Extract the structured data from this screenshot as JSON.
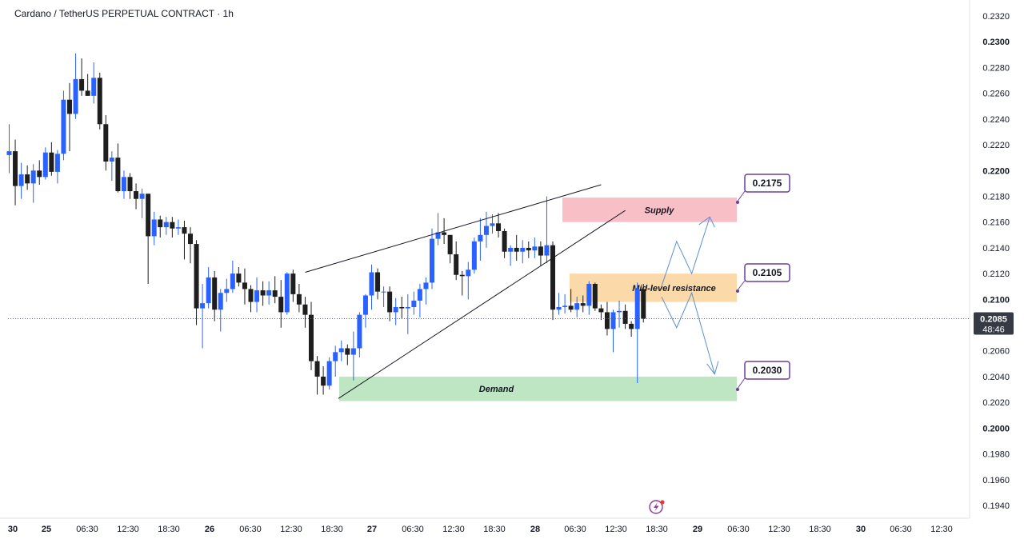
{
  "title": "Cardano / TetherUS PERPETUAL CONTRACT · 1h",
  "colors": {
    "bull": "#2962ff",
    "bear": "#1e1e1e",
    "supply": "#f8bfc6",
    "resistance": "#fcd9a8",
    "demand": "#bfe6c2",
    "callout_border": "#6a3ea1",
    "projection": "#5b8fd6",
    "price_badge": "#363a45"
  },
  "current_price": {
    "value": 0.2085,
    "label": "0.2085",
    "countdown": "48:46"
  },
  "chart_data": {
    "type": "candlestick",
    "title": "Cardano / TetherUS PERPETUAL CONTRACT · 1h",
    "xlabel": "",
    "ylabel": "",
    "ylim": [
      0.1935,
      0.2328
    ],
    "grid": false,
    "y_ticks": [
      "0.2320",
      "0.2300",
      "0.2280",
      "0.2260",
      "0.2240",
      "0.2220",
      "0.2200",
      "0.2180",
      "0.2160",
      "0.2140",
      "0.2120",
      "0.2100",
      "0.2060",
      "0.2040",
      "0.2020",
      "0.2000",
      "0.1980",
      "0.1960",
      "0.1940"
    ],
    "y_ticks_major": [
      "0.2300",
      "0.2200",
      "0.2100",
      "0.2000"
    ],
    "x_ticks": [
      "30",
      "25",
      "06:30",
      "12:30",
      "18:30",
      "26",
      "06:30",
      "12:30",
      "18:30",
      "27",
      "06:30",
      "12:30",
      "18:30",
      "28",
      "06:30",
      "12:30",
      "18:30",
      "29",
      "06:30",
      "12:30",
      "18:30",
      "30",
      "06:30",
      "12:30"
    ],
    "x_ticks_day": [
      "25",
      "26",
      "27",
      "28",
      "29",
      "30"
    ],
    "candles": [
      {
        "o": 0.2212,
        "h": 0.2236,
        "l": 0.2198,
        "c": 0.2215
      },
      {
        "o": 0.2215,
        "h": 0.2224,
        "l": 0.2173,
        "c": 0.2188
      },
      {
        "o": 0.2188,
        "h": 0.2206,
        "l": 0.2178,
        "c": 0.2197
      },
      {
        "o": 0.2197,
        "h": 0.2204,
        "l": 0.2185,
        "c": 0.219
      },
      {
        "o": 0.219,
        "h": 0.2205,
        "l": 0.2175,
        "c": 0.22
      },
      {
        "o": 0.22,
        "h": 0.2208,
        "l": 0.2189,
        "c": 0.2195
      },
      {
        "o": 0.2195,
        "h": 0.2218,
        "l": 0.2193,
        "c": 0.2214
      },
      {
        "o": 0.2214,
        "h": 0.2222,
        "l": 0.2196,
        "c": 0.2199
      },
      {
        "o": 0.2199,
        "h": 0.2216,
        "l": 0.219,
        "c": 0.2213
      },
      {
        "o": 0.2213,
        "h": 0.2262,
        "l": 0.2208,
        "c": 0.2255
      },
      {
        "o": 0.2255,
        "h": 0.2268,
        "l": 0.2215,
        "c": 0.2244
      },
      {
        "o": 0.2244,
        "h": 0.2291,
        "l": 0.224,
        "c": 0.2271
      },
      {
        "o": 0.2271,
        "h": 0.2287,
        "l": 0.2258,
        "c": 0.2262
      },
      {
        "o": 0.2262,
        "h": 0.2275,
        "l": 0.2258,
        "c": 0.2258
      },
      {
        "o": 0.2258,
        "h": 0.2284,
        "l": 0.2252,
        "c": 0.2272
      },
      {
        "o": 0.2272,
        "h": 0.2276,
        "l": 0.2232,
        "c": 0.2236
      },
      {
        "o": 0.2236,
        "h": 0.2243,
        "l": 0.22,
        "c": 0.2207
      },
      {
        "o": 0.2207,
        "h": 0.2215,
        "l": 0.2192,
        "c": 0.221
      },
      {
        "o": 0.221,
        "h": 0.2221,
        "l": 0.2183,
        "c": 0.2184
      },
      {
        "o": 0.2184,
        "h": 0.22,
        "l": 0.2178,
        "c": 0.2195
      },
      {
        "o": 0.2195,
        "h": 0.2198,
        "l": 0.2178,
        "c": 0.2184
      },
      {
        "o": 0.2184,
        "h": 0.219,
        "l": 0.217,
        "c": 0.2178
      },
      {
        "o": 0.2178,
        "h": 0.2186,
        "l": 0.2163,
        "c": 0.2182
      },
      {
        "o": 0.2182,
        "h": 0.2182,
        "l": 0.2112,
        "c": 0.2149
      },
      {
        "o": 0.2149,
        "h": 0.2168,
        "l": 0.2142,
        "c": 0.2162
      },
      {
        "o": 0.2162,
        "h": 0.2165,
        "l": 0.2148,
        "c": 0.2156
      },
      {
        "o": 0.2156,
        "h": 0.2164,
        "l": 0.215,
        "c": 0.216
      },
      {
        "o": 0.216,
        "h": 0.2164,
        "l": 0.2148,
        "c": 0.2155
      },
      {
        "o": 0.2155,
        "h": 0.2162,
        "l": 0.215,
        "c": 0.2156
      },
      {
        "o": 0.2156,
        "h": 0.2161,
        "l": 0.2131,
        "c": 0.2151
      },
      {
        "o": 0.2151,
        "h": 0.2156,
        "l": 0.2128,
        "c": 0.2143
      },
      {
        "o": 0.2143,
        "h": 0.2146,
        "l": 0.208,
        "c": 0.2093
      },
      {
        "o": 0.2093,
        "h": 0.2112,
        "l": 0.2062,
        "c": 0.2097
      },
      {
        "o": 0.2097,
        "h": 0.2125,
        "l": 0.2093,
        "c": 0.2117
      },
      {
        "o": 0.2117,
        "h": 0.2122,
        "l": 0.2083,
        "c": 0.2092
      },
      {
        "o": 0.2092,
        "h": 0.2108,
        "l": 0.2075,
        "c": 0.2105
      },
      {
        "o": 0.2105,
        "h": 0.2116,
        "l": 0.2098,
        "c": 0.2108
      },
      {
        "o": 0.2108,
        "h": 0.213,
        "l": 0.2105,
        "c": 0.212
      },
      {
        "o": 0.212,
        "h": 0.2125,
        "l": 0.211,
        "c": 0.2113
      },
      {
        "o": 0.2113,
        "h": 0.2124,
        "l": 0.2096,
        "c": 0.2108
      },
      {
        "o": 0.2108,
        "h": 0.2111,
        "l": 0.209,
        "c": 0.2098
      },
      {
        "o": 0.2098,
        "h": 0.2117,
        "l": 0.209,
        "c": 0.2107
      },
      {
        "o": 0.2107,
        "h": 0.2114,
        "l": 0.2095,
        "c": 0.2103
      },
      {
        "o": 0.2103,
        "h": 0.2114,
        "l": 0.2096,
        "c": 0.2107
      },
      {
        "o": 0.2107,
        "h": 0.2118,
        "l": 0.2097,
        "c": 0.2102
      },
      {
        "o": 0.2102,
        "h": 0.2115,
        "l": 0.2078,
        "c": 0.209
      },
      {
        "o": 0.209,
        "h": 0.2121,
        "l": 0.2088,
        "c": 0.212
      },
      {
        "o": 0.212,
        "h": 0.2123,
        "l": 0.2098,
        "c": 0.2104
      },
      {
        "o": 0.2104,
        "h": 0.2112,
        "l": 0.209,
        "c": 0.2096
      },
      {
        "o": 0.2096,
        "h": 0.2102,
        "l": 0.2078,
        "c": 0.2088
      },
      {
        "o": 0.2088,
        "h": 0.2098,
        "l": 0.2045,
        "c": 0.2052
      },
      {
        "o": 0.2052,
        "h": 0.2056,
        "l": 0.2026,
        "c": 0.204
      },
      {
        "o": 0.204,
        "h": 0.2048,
        "l": 0.2026,
        "c": 0.2033
      },
      {
        "o": 0.2033,
        "h": 0.2055,
        "l": 0.203,
        "c": 0.2052
      },
      {
        "o": 0.2052,
        "h": 0.2064,
        "l": 0.204,
        "c": 0.2059
      },
      {
        "o": 0.2059,
        "h": 0.2068,
        "l": 0.2052,
        "c": 0.2062
      },
      {
        "o": 0.2062,
        "h": 0.2065,
        "l": 0.2049,
        "c": 0.2057
      },
      {
        "o": 0.2057,
        "h": 0.2075,
        "l": 0.2037,
        "c": 0.2062
      },
      {
        "o": 0.2062,
        "h": 0.209,
        "l": 0.2055,
        "c": 0.2088
      },
      {
        "o": 0.2088,
        "h": 0.2104,
        "l": 0.2078,
        "c": 0.2103
      },
      {
        "o": 0.2103,
        "h": 0.2127,
        "l": 0.2092,
        "c": 0.2121
      },
      {
        "o": 0.2121,
        "h": 0.2124,
        "l": 0.21,
        "c": 0.2106
      },
      {
        "o": 0.2106,
        "h": 0.211,
        "l": 0.2094,
        "c": 0.2106
      },
      {
        "o": 0.2106,
        "h": 0.211,
        "l": 0.2083,
        "c": 0.209
      },
      {
        "o": 0.209,
        "h": 0.2101,
        "l": 0.208,
        "c": 0.2094
      },
      {
        "o": 0.2094,
        "h": 0.2102,
        "l": 0.2085,
        "c": 0.2093
      },
      {
        "o": 0.2093,
        "h": 0.2104,
        "l": 0.2073,
        "c": 0.2094
      },
      {
        "o": 0.2094,
        "h": 0.2106,
        "l": 0.2088,
        "c": 0.2099
      },
      {
        "o": 0.2099,
        "h": 0.2112,
        "l": 0.2086,
        "c": 0.2108
      },
      {
        "o": 0.2108,
        "h": 0.2117,
        "l": 0.2096,
        "c": 0.2113
      },
      {
        "o": 0.2113,
        "h": 0.2155,
        "l": 0.2108,
        "c": 0.2147
      },
      {
        "o": 0.2147,
        "h": 0.2167,
        "l": 0.2142,
        "c": 0.2152
      },
      {
        "o": 0.2152,
        "h": 0.2163,
        "l": 0.2143,
        "c": 0.215
      },
      {
        "o": 0.215,
        "h": 0.215,
        "l": 0.2128,
        "c": 0.2135
      },
      {
        "o": 0.2135,
        "h": 0.2145,
        "l": 0.2115,
        "c": 0.2119
      },
      {
        "o": 0.2119,
        "h": 0.2122,
        "l": 0.2103,
        "c": 0.2118
      },
      {
        "o": 0.2118,
        "h": 0.2129,
        "l": 0.21,
        "c": 0.2123
      },
      {
        "o": 0.2123,
        "h": 0.2148,
        "l": 0.212,
        "c": 0.2145
      },
      {
        "o": 0.2145,
        "h": 0.2163,
        "l": 0.213,
        "c": 0.215
      },
      {
        "o": 0.215,
        "h": 0.2168,
        "l": 0.214,
        "c": 0.2157
      },
      {
        "o": 0.2157,
        "h": 0.2166,
        "l": 0.2151,
        "c": 0.2159
      },
      {
        "o": 0.2159,
        "h": 0.2167,
        "l": 0.2148,
        "c": 0.2153
      },
      {
        "o": 0.2153,
        "h": 0.2155,
        "l": 0.2132,
        "c": 0.2137
      },
      {
        "o": 0.2137,
        "h": 0.2142,
        "l": 0.2126,
        "c": 0.214
      },
      {
        "o": 0.214,
        "h": 0.215,
        "l": 0.213,
        "c": 0.2137
      },
      {
        "o": 0.2137,
        "h": 0.2146,
        "l": 0.2128,
        "c": 0.214
      },
      {
        "o": 0.214,
        "h": 0.2145,
        "l": 0.2132,
        "c": 0.2138
      },
      {
        "o": 0.2138,
        "h": 0.2148,
        "l": 0.2132,
        "c": 0.2141
      },
      {
        "o": 0.2141,
        "h": 0.2145,
        "l": 0.2126,
        "c": 0.2134
      },
      {
        "o": 0.2134,
        "h": 0.218,
        "l": 0.2128,
        "c": 0.2142
      },
      {
        "o": 0.2142,
        "h": 0.2145,
        "l": 0.2084,
        "c": 0.2092
      },
      {
        "o": 0.2092,
        "h": 0.2105,
        "l": 0.2088,
        "c": 0.2094
      },
      {
        "o": 0.2094,
        "h": 0.2104,
        "l": 0.2089,
        "c": 0.2095
      },
      {
        "o": 0.2095,
        "h": 0.2108,
        "l": 0.209,
        "c": 0.2092
      },
      {
        "o": 0.2092,
        "h": 0.2102,
        "l": 0.2086,
        "c": 0.2097
      },
      {
        "o": 0.2097,
        "h": 0.2103,
        "l": 0.209,
        "c": 0.2095
      },
      {
        "o": 0.2095,
        "h": 0.2114,
        "l": 0.2088,
        "c": 0.2112
      },
      {
        "o": 0.2112,
        "h": 0.2113,
        "l": 0.2091,
        "c": 0.2093
      },
      {
        "o": 0.2093,
        "h": 0.2096,
        "l": 0.2084,
        "c": 0.209
      },
      {
        "o": 0.209,
        "h": 0.2098,
        "l": 0.2072,
        "c": 0.2077
      },
      {
        "o": 0.2077,
        "h": 0.2092,
        "l": 0.2059,
        "c": 0.209
      },
      {
        "o": 0.209,
        "h": 0.2099,
        "l": 0.2078,
        "c": 0.2091
      },
      {
        "o": 0.2091,
        "h": 0.2096,
        "l": 0.2077,
        "c": 0.2081
      },
      {
        "o": 0.2081,
        "h": 0.2083,
        "l": 0.2071,
        "c": 0.2077
      },
      {
        "o": 0.2077,
        "h": 0.2113,
        "l": 0.2035,
        "c": 0.2108
      },
      {
        "o": 0.2108,
        "h": 0.2112,
        "l": 0.2082,
        "c": 0.2085
      }
    ]
  },
  "zones": {
    "supply": {
      "label": "Supply",
      "top": 0.2179,
      "bottom": 0.216
    },
    "resistance": {
      "label": "Mid-level resistance",
      "top": 0.212,
      "bottom": 0.2098
    },
    "demand": {
      "label": "Demand",
      "top": 0.204,
      "bottom": 0.2021
    }
  },
  "callouts": [
    {
      "label": "0.2175",
      "value": 0.2175
    },
    {
      "label": "0.2105",
      "value": 0.2105
    },
    {
      "label": "0.2030",
      "value": 0.203
    }
  ]
}
